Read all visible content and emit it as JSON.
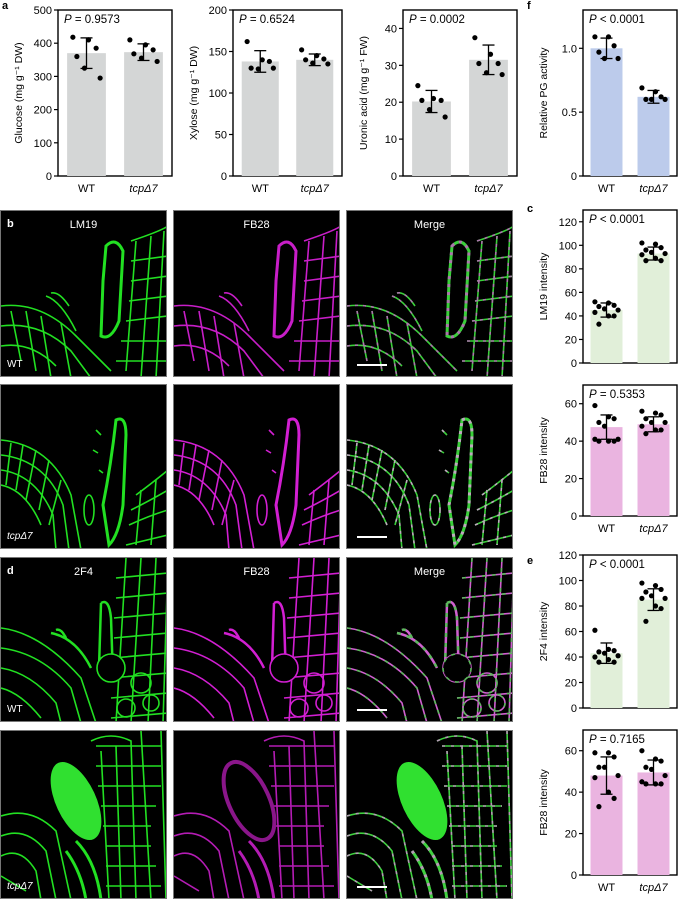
{
  "panel_letters": {
    "a": "a",
    "b": "b",
    "c": "c",
    "d": "d",
    "e": "e",
    "f": "f"
  },
  "colors": {
    "gray_bar": "#d4d6d6",
    "blue_bar": "#bccbeb",
    "green_bar": "#e1efd9",
    "pink_bar": "#eab4e0",
    "green_channel": "#22e022",
    "magenta_channel": "#d21fd2"
  },
  "micrographs": {
    "b": {
      "channels": [
        "LM19",
        "FB28",
        "Merge"
      ],
      "rows": [
        {
          "genotype": "WT",
          "italic": false
        },
        {
          "genotype": "tcpΔ7",
          "italic": true
        }
      ]
    },
    "d": {
      "channels": [
        "2F4",
        "FB28",
        "Merge"
      ],
      "rows": [
        {
          "genotype": "WT",
          "italic": false
        },
        {
          "genotype": "tcpΔ7",
          "italic": true
        }
      ]
    }
  },
  "chart_data": [
    {
      "id": "a1",
      "panel": "a",
      "type": "bar",
      "title": "",
      "categories": [
        "WT",
        "tcpΔ7"
      ],
      "values": [
        370,
        373
      ],
      "errors": [
        46,
        25
      ],
      "points": [
        [
          418,
          410,
          385,
          360,
          325,
          295
        ],
        [
          410,
          395,
          380,
          368,
          355,
          345
        ]
      ],
      "annotation": "P = 0.9573",
      "ylabel": "Glucose (mg g⁻¹ DW)",
      "ylim": [
        0,
        500
      ],
      "yticks": [
        0,
        100,
        200,
        300,
        400,
        500
      ],
      "bar_color": "#d4d6d6"
    },
    {
      "id": "a2",
      "panel": "a",
      "type": "bar",
      "title": "",
      "categories": [
        "WT",
        "tcpΔ7"
      ],
      "values": [
        138,
        140
      ],
      "errors": [
        13,
        7
      ],
      "points": [
        [
          162,
          140,
          138,
          130,
          129,
          130
        ],
        [
          152,
          145,
          141,
          140,
          136,
          135
        ]
      ],
      "annotation": "P = 0.6524",
      "ylabel": "Xylose (mg g⁻¹ DW)",
      "ylim": [
        0,
        200
      ],
      "yticks": [
        0,
        50,
        100,
        150,
        200
      ],
      "bar_color": "#d4d6d6"
    },
    {
      "id": "a3",
      "panel": "a",
      "type": "bar",
      "title": "",
      "categories": [
        "WT",
        "tcpΔ7"
      ],
      "values": [
        20.2,
        31.5
      ],
      "errors": [
        3.0,
        4.0
      ],
      "points": [
        [
          24.5,
          21,
          20.5,
          20.5,
          18,
          16
        ],
        [
          37.5,
          33,
          30.5,
          30.5,
          28,
          27.5
        ]
      ],
      "annotation": "P = 0.0002",
      "ylabel": "Uronic acid (mg g⁻¹ FW)",
      "ylim": [
        0,
        45
      ],
      "yticks": [
        0,
        10,
        20,
        30,
        40
      ],
      "bar_color": "#d4d6d6"
    },
    {
      "id": "f",
      "panel": "f",
      "type": "bar",
      "title": "",
      "categories": [
        "WT",
        "tcpΔ7"
      ],
      "values": [
        1.0,
        0.62
      ],
      "errors": [
        0.08,
        0.05
      ],
      "points": [
        [
          1.09,
          1.09,
          1.02,
          0.97,
          0.92,
          0.92
        ],
        [
          0.69,
          0.66,
          0.62,
          0.6,
          0.6,
          0.6
        ]
      ],
      "annotation": "P < 0.0001",
      "ylabel": "Relative PG activity",
      "ylim": [
        0,
        1.3
      ],
      "yticks": [
        0,
        0.5,
        1.0
      ],
      "ytick_labels": [
        "0",
        "0.5",
        "1.0"
      ],
      "bar_color": "#bccbeb"
    },
    {
      "id": "c1",
      "panel": "c",
      "type": "bar",
      "title": "",
      "categories": [
        "WT",
        "tcpΔ7"
      ],
      "values": [
        45,
        93
      ],
      "errors": [
        6,
        5.5
      ],
      "points": [
        [
          52,
          51,
          49,
          48,
          46,
          45,
          43,
          40,
          40,
          33
        ],
        [
          102,
          101,
          98,
          96,
          94,
          93,
          92,
          89,
          87,
          87
        ]
      ],
      "annotation": "P < 0.0001",
      "ylabel": "LM19 intensity",
      "ylim": [
        0,
        130
      ],
      "yticks": [
        0,
        20,
        40,
        60,
        80,
        100,
        120
      ],
      "bar_color": "#e1efd9",
      "show_xlabels": false
    },
    {
      "id": "c2",
      "panel": "c",
      "type": "bar",
      "title": "",
      "categories": [
        "WT",
        "tcpΔ7"
      ],
      "values": [
        47.5,
        49
      ],
      "errors": [
        6.5,
        4
      ],
      "points": [
        [
          59,
          53,
          52,
          50,
          48,
          41,
          41,
          40,
          40,
          40
        ],
        [
          56,
          55,
          54,
          52,
          50,
          50,
          48,
          46,
          46,
          44
        ]
      ],
      "annotation": "P = 0.5353",
      "ylabel": "FB28 intensity",
      "ylim": [
        0,
        70
      ],
      "yticks": [
        0,
        20,
        40,
        60
      ],
      "bar_color": "#eab4e0"
    },
    {
      "id": "e1",
      "panel": "e",
      "type": "bar",
      "title": "",
      "categories": [
        "WT",
        "tcpΔ7"
      ],
      "values": [
        43,
        85
      ],
      "errors": [
        8,
        8.5
      ],
      "points": [
        [
          61,
          46,
          45,
          44,
          43,
          41,
          40,
          38,
          36,
          36
        ],
        [
          98,
          96,
          93,
          91,
          88,
          86,
          86,
          80,
          78,
          68
        ]
      ],
      "annotation": "P < 0.0001",
      "ylabel": "2F4 intensity",
      "ylim": [
        0,
        120
      ],
      "yticks": [
        0,
        20,
        40,
        60,
        80,
        100,
        120
      ],
      "bar_color": "#e1efd9",
      "show_xlabels": false
    },
    {
      "id": "e2",
      "panel": "e",
      "type": "bar",
      "title": "",
      "categories": [
        "WT",
        "tcpΔ7"
      ],
      "values": [
        48,
        49.5
      ],
      "errors": [
        9,
        6
      ],
      "points": [
        [
          59,
          59,
          57,
          52,
          52,
          48,
          47,
          40,
          37,
          33
        ],
        [
          60,
          56,
          55,
          52,
          51,
          48,
          45,
          44,
          44,
          44
        ]
      ],
      "annotation": "P = 0.7165",
      "ylabel": "FB28 intensity",
      "ylim": [
        0,
        70
      ],
      "yticks": [
        0,
        20,
        40,
        60
      ],
      "bar_color": "#eab4e0"
    }
  ]
}
